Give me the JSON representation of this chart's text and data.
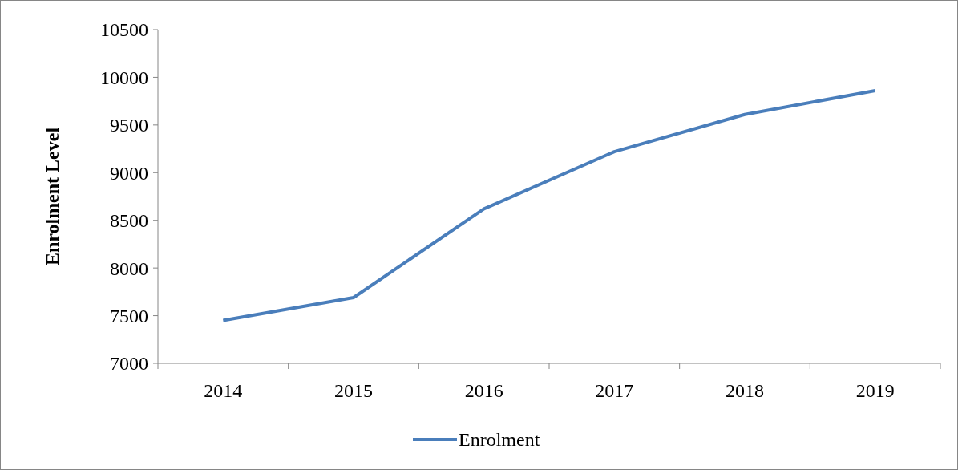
{
  "chart_data": {
    "type": "line",
    "ylabel": "Enrolment Level",
    "categories": [
      "2014",
      "2015",
      "2016",
      "2017",
      "2018",
      "2019"
    ],
    "series": [
      {
        "name": "Enrolment",
        "color": "#4a7ebb",
        "values": [
          7450,
          7690,
          8620,
          9220,
          9610,
          9860
        ]
      }
    ],
    "ylim": [
      7000,
      10500
    ],
    "yticks": [
      7000,
      7500,
      8000,
      8500,
      9000,
      9500,
      10000,
      10500
    ],
    "grid": false,
    "legend": "bottom",
    "marker": "none",
    "line_style": "solid"
  }
}
